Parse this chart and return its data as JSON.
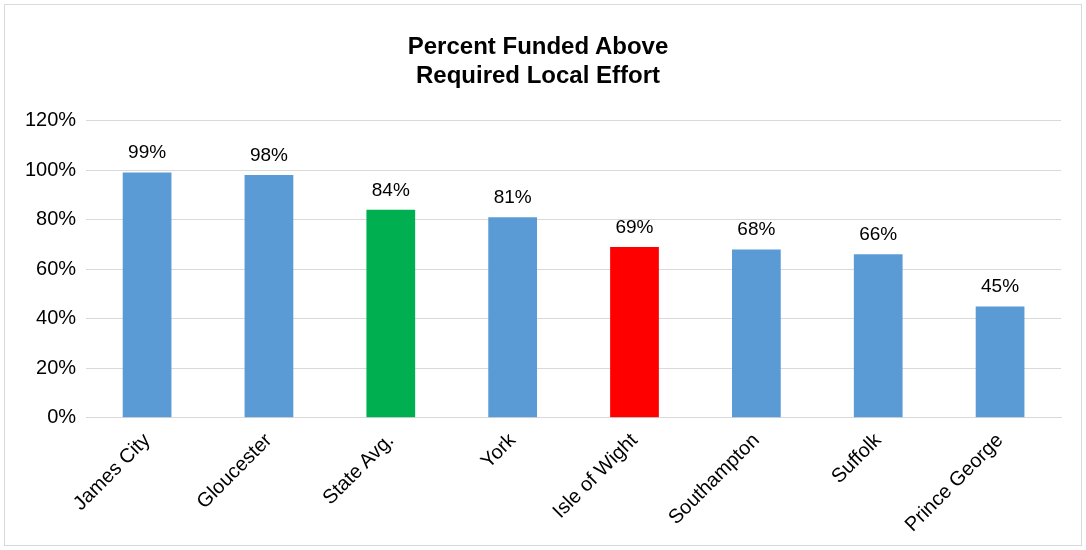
{
  "chart_data": {
    "type": "bar",
    "title": "Percent Funded Above\nRequired Local Effort",
    "categories": [
      "James City",
      "Gloucester",
      "State Avg.",
      "York",
      "Isle of Wight",
      "Southampton",
      "Suffolk",
      "Prince George"
    ],
    "values": [
      99,
      98,
      84,
      81,
      69,
      68,
      66,
      45
    ],
    "colors": [
      "#5b9bd5",
      "#5b9bd5",
      "#00b050",
      "#5b9bd5",
      "#ff0000",
      "#5b9bd5",
      "#5b9bd5",
      "#5b9bd5"
    ],
    "value_labels": [
      "99%",
      "98%",
      "84%",
      "81%",
      "69%",
      "68%",
      "66%",
      "45%"
    ],
    "ylim": [
      0,
      120
    ],
    "yticks": [
      {
        "value": 0,
        "label": "0%"
      },
      {
        "value": 20,
        "label": "20%"
      },
      {
        "value": 40,
        "label": "40%"
      },
      {
        "value": 60,
        "label": "60%"
      },
      {
        "value": 80,
        "label": "80%"
      },
      {
        "value": 100,
        "label": "100%"
      },
      {
        "value": 120,
        "label": "120%"
      }
    ],
    "grid": "y",
    "legend": false
  }
}
